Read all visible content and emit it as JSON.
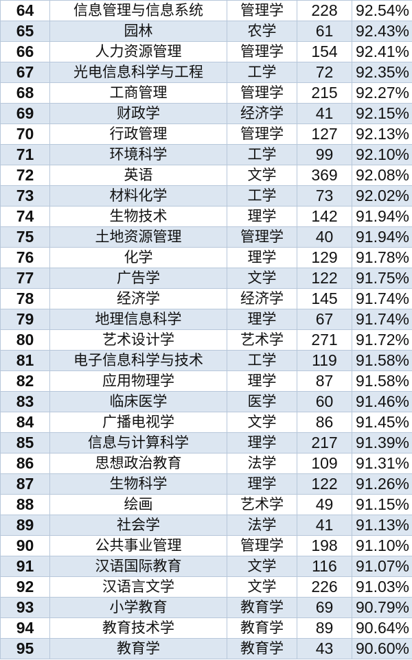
{
  "rows": [
    [
      "64",
      "信息管理与信息系统",
      "管理学",
      "228",
      "92.54%"
    ],
    [
      "65",
      "园林",
      "农学",
      "61",
      "92.43%"
    ],
    [
      "66",
      "人力资源管理",
      "管理学",
      "154",
      "92.41%"
    ],
    [
      "67",
      "光电信息科学与工程",
      "工学",
      "72",
      "92.35%"
    ],
    [
      "68",
      "工商管理",
      "管理学",
      "215",
      "92.27%"
    ],
    [
      "69",
      "财政学",
      "经济学",
      "41",
      "92.15%"
    ],
    [
      "70",
      "行政管理",
      "管理学",
      "127",
      "92.13%"
    ],
    [
      "71",
      "环境科学",
      "工学",
      "99",
      "92.10%"
    ],
    [
      "72",
      "英语",
      "文学",
      "369",
      "92.08%"
    ],
    [
      "73",
      "材料化学",
      "工学",
      "73",
      "92.02%"
    ],
    [
      "74",
      "生物技术",
      "理学",
      "142",
      "91.94%"
    ],
    [
      "75",
      "土地资源管理",
      "管理学",
      "40",
      "91.94%"
    ],
    [
      "76",
      "化学",
      "理学",
      "129",
      "91.78%"
    ],
    [
      "77",
      "广告学",
      "文学",
      "122",
      "91.75%"
    ],
    [
      "78",
      "经济学",
      "经济学",
      "145",
      "91.74%"
    ],
    [
      "79",
      "地理信息科学",
      "理学",
      "67",
      "91.74%"
    ],
    [
      "80",
      "艺术设计学",
      "艺术学",
      "271",
      "91.72%"
    ],
    [
      "81",
      "电子信息科学与技术",
      "工学",
      "119",
      "91.58%"
    ],
    [
      "82",
      "应用物理学",
      "理学",
      "87",
      "91.58%"
    ],
    [
      "83",
      "临床医学",
      "医学",
      "60",
      "91.46%"
    ],
    [
      "84",
      "广播电视学",
      "文学",
      "86",
      "91.45%"
    ],
    [
      "85",
      "信息与计算科学",
      "理学",
      "217",
      "91.39%"
    ],
    [
      "86",
      "思想政治教育",
      "法学",
      "109",
      "91.31%"
    ],
    [
      "87",
      "生物科学",
      "理学",
      "122",
      "91.26%"
    ],
    [
      "88",
      "绘画",
      "艺术学",
      "49",
      "91.15%"
    ],
    [
      "89",
      "社会学",
      "法学",
      "41",
      "91.13%"
    ],
    [
      "90",
      "公共事业管理",
      "管理学",
      "198",
      "91.10%"
    ],
    [
      "91",
      "汉语国际教育",
      "文学",
      "116",
      "91.07%"
    ],
    [
      "92",
      "汉语言文学",
      "文学",
      "226",
      "91.03%"
    ],
    [
      "93",
      "小学教育",
      "教育学",
      "69",
      "90.79%"
    ],
    [
      "94",
      "教育技术学",
      "教育学",
      "89",
      "90.64%"
    ],
    [
      "95",
      "教育学",
      "教育学",
      "43",
      "90.60%"
    ]
  ],
  "colors": {
    "row_alt": "#dce6f1",
    "row": "#ffffff",
    "border": "#b7c7da"
  }
}
